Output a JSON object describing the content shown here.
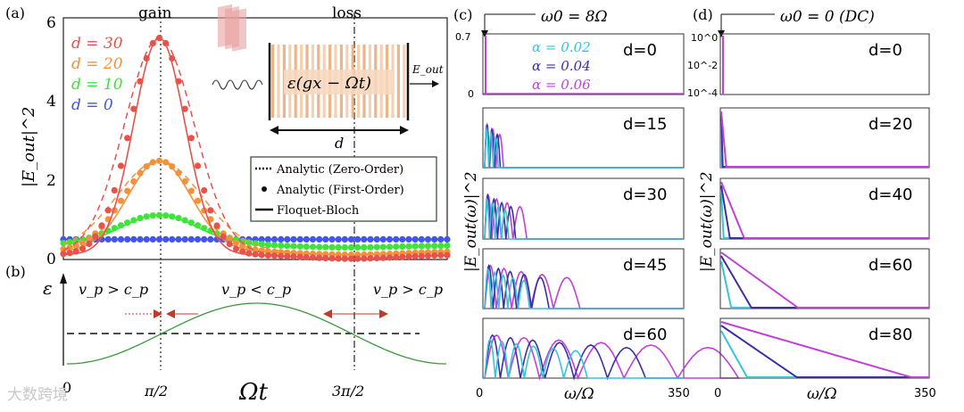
{
  "panels": {
    "a": "(a)",
    "b": "(b)",
    "c": "(c)",
    "d": "(d)"
  },
  "chart_data": [
    {
      "id": "panel-a",
      "type": "line",
      "title": "",
      "xlabel": "",
      "ylabel": "|E_out|^2",
      "ylim": [
        0,
        6
      ],
      "y_ticks": [
        "0",
        "2",
        "4",
        "6"
      ],
      "x_domain": [
        0,
        6.2832
      ],
      "top_labels": {
        "gain": "gain",
        "loss": "loss"
      },
      "legend_d": [
        {
          "label": "d = 30",
          "color": "#e8524a"
        },
        {
          "label": "d = 20",
          "color": "#f2923c"
        },
        {
          "label": "d = 10",
          "color": "#3ee43a"
        },
        {
          "label": "d = 0",
          "color": "#4455ee"
        }
      ],
      "legend_methods": [
        {
          "label": "Analytic (Zero-Order)",
          "style": "dotted"
        },
        {
          "label": "Analytic (First-Order)",
          "style": "dots"
        },
        {
          "label": "Floquet-Bloch",
          "style": "solid"
        }
      ],
      "inset": {
        "formula": "ε(gx − Ωt)",
        "output": "E_out",
        "width_label": "d"
      },
      "series": [
        {
          "name": "d = 0",
          "color": "#4455ee",
          "base": 0.5,
          "peak": 0.5,
          "sigma": 0.7,
          "dip": 0.0
        },
        {
          "name": "d = 10",
          "color": "#3ee43a",
          "base": 0.35,
          "peak": 1.1,
          "sigma": 0.62,
          "dip": 0.05
        },
        {
          "name": "d = 20",
          "color": "#f2923c",
          "base": 0.2,
          "peak": 2.45,
          "sigma": 0.52,
          "dip": 0.08
        },
        {
          "name": "d = 30",
          "color": "#e8524a",
          "base": 0.12,
          "peak": 5.5,
          "sigma": 0.42,
          "dip": 0.1
        }
      ]
    },
    {
      "id": "panel-b",
      "type": "line",
      "ylabel": "ε",
      "xlabel": "Ωt",
      "x_ticks": [
        "0",
        "π/2",
        "3π/2"
      ],
      "regions": [
        "v_p > c_p",
        "v_p < c_p",
        "v_p > c_p"
      ],
      "series": [
        {
          "name": "ε(Ωt)",
          "color": "#3a9a3a",
          "function": "1 - cos(x)"
        }
      ]
    },
    {
      "id": "panel-c",
      "type": "line",
      "title": "ω0 = 8Ω",
      "xlabel": "ω/Ω",
      "ylabel": "|E_out(ω)|^2",
      "xlim": [
        0,
        350
      ],
      "x_ticks": [
        "0",
        "350"
      ],
      "first_ylim": [
        0,
        0.7
      ],
      "first_y_ticks": [
        "0.7",
        "0"
      ],
      "legend": [
        {
          "label": "α = 0.02",
          "color": "#35c4d8"
        },
        {
          "label": "α = 0.04",
          "color": "#3b2fa6"
        },
        {
          "label": "α = 0.06",
          "color": "#c040d8"
        }
      ],
      "rows": [
        "d=0",
        "d=15",
        "d=30",
        "d=45",
        "d=60"
      ],
      "lobe_width": [
        2,
        7,
        18,
        40,
        100
      ],
      "lobe_count": [
        1,
        3,
        4,
        5,
        6
      ]
    },
    {
      "id": "panel-d",
      "type": "line",
      "title": "ω0 = 0 (DC)",
      "xlabel": "ω/Ω",
      "ylabel": "|E_out(ω)|^2",
      "xlim": [
        0,
        350
      ],
      "x_ticks": [
        "0",
        "350"
      ],
      "first_y_ticks": [
        "10^0",
        "10^-2",
        "10^-4"
      ],
      "rows": [
        "d=0",
        "d=20",
        "d=40",
        "d=60",
        "d=80"
      ],
      "decay_end": [
        3,
        10,
        40,
        130,
        320
      ],
      "colors": {
        "cyan": "#35c4d8",
        "navy": "#3b2fa6",
        "magenta": "#c040d8"
      }
    }
  ],
  "watermark": "大数跨境"
}
